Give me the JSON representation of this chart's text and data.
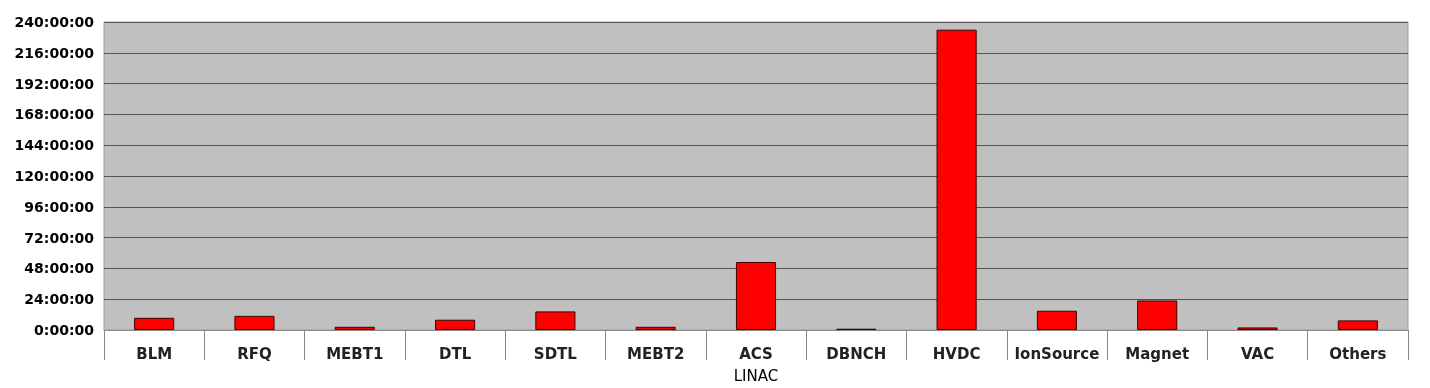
{
  "chart_data": {
    "type": "bar",
    "xlabel": "LINAC",
    "categories": [
      "BLM",
      "RFQ",
      "MEBT1",
      "DTL",
      "SDTL",
      "MEBT2",
      "ACS",
      "DBNCH",
      "HVDC",
      "IonSource",
      "Magnet",
      "VAC",
      "Others"
    ],
    "values": [
      9.5,
      11,
      2.5,
      8,
      14.5,
      2.5,
      53,
      1,
      234,
      15,
      23,
      2,
      7.5
    ],
    "color": "#ff0000",
    "ylim": [
      0,
      240
    ],
    "yticks": [
      {
        "value": 0,
        "label": "0:00:00"
      },
      {
        "value": 24,
        "label": "24:00:00"
      },
      {
        "value": 48,
        "label": "48:00:00"
      },
      {
        "value": 72,
        "label": "72:00:00"
      },
      {
        "value": 96,
        "label": "96:00:00"
      },
      {
        "value": 120,
        "label": "120:00:00"
      },
      {
        "value": 144,
        "label": "144:00:00"
      },
      {
        "value": 168,
        "label": "168:00:00"
      },
      {
        "value": 192,
        "label": "192:00:00"
      },
      {
        "value": 216,
        "label": "216:00:00"
      },
      {
        "value": 240,
        "label": "240:00:00"
      }
    ],
    "grid": "y"
  }
}
